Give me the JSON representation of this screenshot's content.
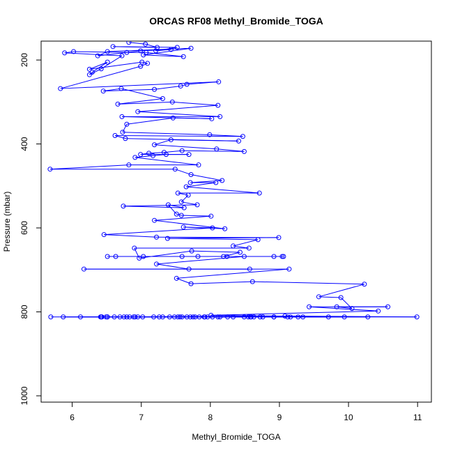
{
  "chart_data": {
    "type": "line",
    "title": "ORCAS RF08 Methyl_Bromide_TOGA",
    "xlabel": "Methyl_Bromide_TOGA",
    "ylabel": "Pressure (mbar)",
    "xlim": [
      5.55,
      11.2
    ],
    "ylim": [
      1015,
      155
    ],
    "y_reversed": true,
    "xticks": [
      6,
      7,
      8,
      9,
      10,
      11
    ],
    "yticks": [
      200,
      400,
      600,
      800,
      1000
    ],
    "grid": false,
    "series_color": "#0000ff",
    "points": [
      [
        5.69,
        812
      ],
      [
        10.99,
        812
      ],
      [
        9.08,
        810
      ],
      [
        6.42,
        812
      ],
      [
        7.84,
        812
      ],
      [
        7.18,
        812
      ],
      [
        10.28,
        812
      ],
      [
        6.49,
        812
      ],
      [
        8.58,
        812
      ],
      [
        7.71,
        812
      ],
      [
        6.91,
        812
      ],
      [
        5.87,
        812
      ],
      [
        8.92,
        812
      ],
      [
        7.48,
        812
      ],
      [
        6.61,
        812
      ],
      [
        8.14,
        812
      ],
      [
        6.12,
        812
      ],
      [
        9.27,
        812
      ],
      [
        6.41,
        812
      ],
      [
        7.66,
        812
      ],
      [
        7.92,
        812
      ],
      [
        6.79,
        812
      ],
      [
        8.33,
        812
      ],
      [
        6.51,
        812
      ],
      [
        7.31,
        812
      ],
      [
        9.71,
        812
      ],
      [
        6.69,
        812
      ],
      [
        8.72,
        812
      ],
      [
        7.02,
        812
      ],
      [
        6.75,
        812
      ],
      [
        7.53,
        812
      ],
      [
        8.49,
        812
      ],
      [
        6.43,
        812
      ],
      [
        8.92,
        812
      ],
      [
        6.51,
        812
      ],
      [
        7.78,
        812
      ],
      [
        8.25,
        812
      ],
      [
        6.89,
        812
      ],
      [
        9.34,
        812
      ],
      [
        7.41,
        812
      ],
      [
        8.63,
        812
      ],
      [
        6.95,
        812
      ],
      [
        7.59,
        812
      ],
      [
        9.12,
        812
      ],
      [
        7.26,
        812
      ],
      [
        8.11,
        812
      ],
      [
        6.83,
        812
      ],
      [
        8.03,
        812
      ],
      [
        7.91,
        812
      ],
      [
        8.76,
        812
      ],
      [
        7.96,
        812
      ],
      [
        8.55,
        812
      ],
      [
        9.16,
        812
      ],
      [
        7.75,
        812
      ],
      [
        8.59,
        812
      ],
      [
        7.56,
        812
      ],
      [
        9.94,
        812
      ],
      [
        8.01,
        808
      ],
      [
        10.43,
        798
      ],
      [
        9.43,
        788
      ],
      [
        10.57,
        788
      ],
      [
        9.83,
        788
      ],
      [
        10.05,
        792
      ],
      [
        9.89,
        766
      ],
      [
        9.57,
        764
      ],
      [
        10.23,
        734
      ],
      [
        8.61,
        728
      ],
      [
        7.72,
        733
      ],
      [
        7.51,
        720
      ],
      [
        9.14,
        698
      ],
      [
        6.17,
        698
      ],
      [
        8.57,
        698
      ],
      [
        7.69,
        698
      ],
      [
        7.22,
        686
      ],
      [
        8.49,
        668
      ],
      [
        7.03,
        668
      ],
      [
        9.06,
        668
      ],
      [
        6.63,
        668
      ],
      [
        9.04,
        668
      ],
      [
        8.92,
        668
      ],
      [
        6.51,
        668
      ],
      [
        8.24,
        668
      ],
      [
        7.82,
        668
      ],
      [
        7.59,
        668
      ],
      [
        8.19,
        668
      ],
      [
        8.43,
        658
      ],
      [
        7.73,
        655
      ],
      [
        6.97,
        672
      ],
      [
        6.9,
        648
      ],
      [
        8.56,
        648
      ],
      [
        8.33,
        643
      ],
      [
        8.69,
        628
      ],
      [
        7.38,
        625
      ],
      [
        8.99,
        623
      ],
      [
        7.22,
        622
      ],
      [
        6.46,
        616
      ],
      [
        8.03,
        600
      ],
      [
        7.61,
        598
      ],
      [
        8.21,
        602
      ],
      [
        7.19,
        582
      ],
      [
        8.01,
        572
      ],
      [
        7.58,
        570
      ],
      [
        7.51,
        567
      ],
      [
        7.39,
        545
      ],
      [
        7.62,
        552
      ],
      [
        6.74,
        548
      ],
      [
        7.81,
        545
      ],
      [
        7.58,
        538
      ],
      [
        7.68,
        522
      ],
      [
        7.53,
        517
      ],
      [
        8.71,
        517
      ],
      [
        7.65,
        502
      ],
      [
        8.08,
        492
      ],
      [
        7.71,
        492
      ],
      [
        8.17,
        487
      ],
      [
        7.72,
        473
      ],
      [
        7.49,
        460
      ],
      [
        5.68,
        460
      ],
      [
        6.82,
        450
      ],
      [
        7.83,
        450
      ],
      [
        6.91,
        432
      ],
      [
        7.17,
        428
      ],
      [
        7.36,
        425
      ],
      [
        7.69,
        425
      ],
      [
        6.99,
        425
      ],
      [
        7.11,
        422
      ],
      [
        7.33,
        420
      ],
      [
        7.59,
        416
      ],
      [
        8.49,
        418
      ],
      [
        8.09,
        412
      ],
      [
        7.19,
        402
      ],
      [
        7.43,
        390
      ],
      [
        8.41,
        393
      ],
      [
        6.77,
        387
      ],
      [
        6.62,
        380
      ],
      [
        8.47,
        382
      ],
      [
        7.99,
        378
      ],
      [
        6.73,
        372
      ],
      [
        6.79,
        353
      ],
      [
        7.46,
        338
      ],
      [
        8.02,
        340
      ],
      [
        6.72,
        335
      ],
      [
        8.14,
        335
      ],
      [
        6.95,
        323
      ],
      [
        8.11,
        308
      ],
      [
        7.45,
        300
      ],
      [
        6.66,
        305
      ],
      [
        7.31,
        292
      ],
      [
        6.71,
        268
      ],
      [
        6.45,
        274
      ],
      [
        7.19,
        270
      ],
      [
        7.57,
        262
      ],
      [
        7.66,
        258
      ],
      [
        8.12,
        252
      ],
      [
        5.83,
        268
      ],
      [
        6.99,
        215
      ],
      [
        7.09,
        208
      ],
      [
        7.01,
        205
      ],
      [
        6.25,
        222
      ],
      [
        6.51,
        205
      ],
      [
        6.29,
        229
      ],
      [
        6.25,
        235
      ],
      [
        6.42,
        221
      ],
      [
        6.72,
        190
      ],
      [
        5.89,
        183
      ],
      [
        6.02,
        180
      ],
      [
        6.79,
        182
      ],
      [
        7.07,
        182
      ],
      [
        7.61,
        192
      ],
      [
        7.03,
        188
      ],
      [
        7.72,
        172
      ],
      [
        6.51,
        180
      ],
      [
        6.37,
        190
      ],
      [
        6.99,
        178
      ],
      [
        7.43,
        175
      ],
      [
        7.21,
        178
      ],
      [
        7.52,
        170
      ],
      [
        6.59,
        168
      ],
      [
        7.23,
        170
      ],
      [
        7.06,
        162
      ],
      [
        6.82,
        158
      ]
    ]
  }
}
